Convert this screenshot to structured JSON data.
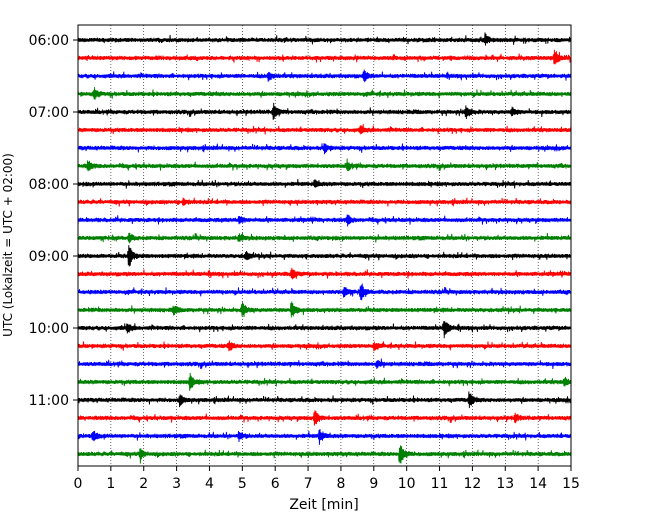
{
  "chart_data": {
    "type": "line",
    "xlabel": "Zeit  [min]",
    "ylabel": "UTC (Lokalzeit = UTC + 02:00)",
    "xlim": [
      0,
      15
    ],
    "x_ticks": [
      0,
      1,
      2,
      3,
      4,
      5,
      6,
      7,
      8,
      9,
      10,
      11,
      12,
      13,
      14,
      15
    ],
    "y_ticks": [
      "06:00",
      "07:00",
      "08:00",
      "09:00",
      "10:00",
      "11:00"
    ],
    "grid": "vertical dotted lines at each minute",
    "trace_colors": [
      "#000000",
      "#ff0000",
      "#0000ff",
      "#008000"
    ],
    "traces": [
      {
        "start": "06:00",
        "color": "#000000",
        "bursts": [
          {
            "x": 12.4,
            "a": 0.5
          }
        ]
      },
      {
        "start": "06:15",
        "color": "#ff0000",
        "bursts": [
          {
            "x": 14.5,
            "a": 1.0
          }
        ]
      },
      {
        "start": "06:30",
        "color": "#0000ff",
        "bursts": [
          {
            "x": 5.8,
            "a": 0.5
          },
          {
            "x": 8.7,
            "a": 0.6
          }
        ]
      },
      {
        "start": "06:45",
        "color": "#008000",
        "bursts": [
          {
            "x": 0.5,
            "a": 0.6
          }
        ]
      },
      {
        "start": "07:00",
        "color": "#000000",
        "bursts": [
          {
            "x": 5.95,
            "a": 1.0
          },
          {
            "x": 11.8,
            "a": 0.9
          },
          {
            "x": 13.2,
            "a": 0.5
          }
        ]
      },
      {
        "start": "07:15",
        "color": "#ff0000",
        "bursts": [
          {
            "x": 8.6,
            "a": 0.4
          }
        ]
      },
      {
        "start": "07:30",
        "color": "#0000ff",
        "bursts": [
          {
            "x": 7.5,
            "a": 0.5
          }
        ]
      },
      {
        "start": "07:45",
        "color": "#008000",
        "bursts": [
          {
            "x": 0.3,
            "a": 0.6
          },
          {
            "x": 8.2,
            "a": 0.5
          }
        ]
      },
      {
        "start": "08:00",
        "color": "#000000",
        "bursts": [
          {
            "x": 7.2,
            "a": 0.4
          }
        ]
      },
      {
        "start": "08:15",
        "color": "#ff0000",
        "bursts": [
          {
            "x": 3.2,
            "a": 0.4
          }
        ]
      },
      {
        "start": "08:30",
        "color": "#0000ff",
        "bursts": [
          {
            "x": 8.2,
            "a": 0.6
          },
          {
            "x": 4.9,
            "a": 0.5
          }
        ]
      },
      {
        "start": "08:45",
        "color": "#008000",
        "bursts": [
          {
            "x": 1.55,
            "a": 0.5
          },
          {
            "x": 4.9,
            "a": 0.4
          }
        ]
      },
      {
        "start": "09:00",
        "color": "#000000",
        "bursts": [
          {
            "x": 1.55,
            "a": 1.4
          },
          {
            "x": 5.1,
            "a": 0.5
          }
        ]
      },
      {
        "start": "09:15",
        "color": "#ff0000",
        "bursts": [
          {
            "x": 6.5,
            "a": 0.7
          }
        ]
      },
      {
        "start": "09:30",
        "color": "#0000ff",
        "bursts": [
          {
            "x": 8.6,
            "a": 1.0
          },
          {
            "x": 8.1,
            "a": 0.6
          }
        ]
      },
      {
        "start": "09:45",
        "color": "#008000",
        "bursts": [
          {
            "x": 6.5,
            "a": 1.0
          },
          {
            "x": 5.0,
            "a": 0.9
          },
          {
            "x": 2.9,
            "a": 0.5
          }
        ]
      },
      {
        "start": "10:00",
        "color": "#000000",
        "bursts": [
          {
            "x": 11.15,
            "a": 1.1
          },
          {
            "x": 1.5,
            "a": 0.5
          }
        ]
      },
      {
        "start": "10:15",
        "color": "#ff0000",
        "bursts": [
          {
            "x": 4.6,
            "a": 0.5
          },
          {
            "x": 9.0,
            "a": 0.4
          }
        ]
      },
      {
        "start": "10:30",
        "color": "#0000ff",
        "bursts": [
          {
            "x": 9.1,
            "a": 0.4
          }
        ]
      },
      {
        "start": "10:45",
        "color": "#008000",
        "bursts": [
          {
            "x": 3.4,
            "a": 0.9
          },
          {
            "x": 14.8,
            "a": 0.5
          }
        ]
      },
      {
        "start": "11:00",
        "color": "#000000",
        "bursts": [
          {
            "x": 11.9,
            "a": 0.9
          },
          {
            "x": 3.1,
            "a": 0.6
          }
        ]
      },
      {
        "start": "11:15",
        "color": "#ff0000",
        "bursts": [
          {
            "x": 7.2,
            "a": 0.9
          },
          {
            "x": 13.3,
            "a": 0.5
          }
        ]
      },
      {
        "start": "11:30",
        "color": "#0000ff",
        "bursts": [
          {
            "x": 7.35,
            "a": 0.8
          },
          {
            "x": 0.45,
            "a": 0.6
          },
          {
            "x": 4.9,
            "a": 0.5
          }
        ]
      },
      {
        "start": "11:45",
        "color": "#008000",
        "bursts": [
          {
            "x": 9.8,
            "a": 1.5
          },
          {
            "x": 1.9,
            "a": 0.6
          }
        ]
      }
    ]
  }
}
